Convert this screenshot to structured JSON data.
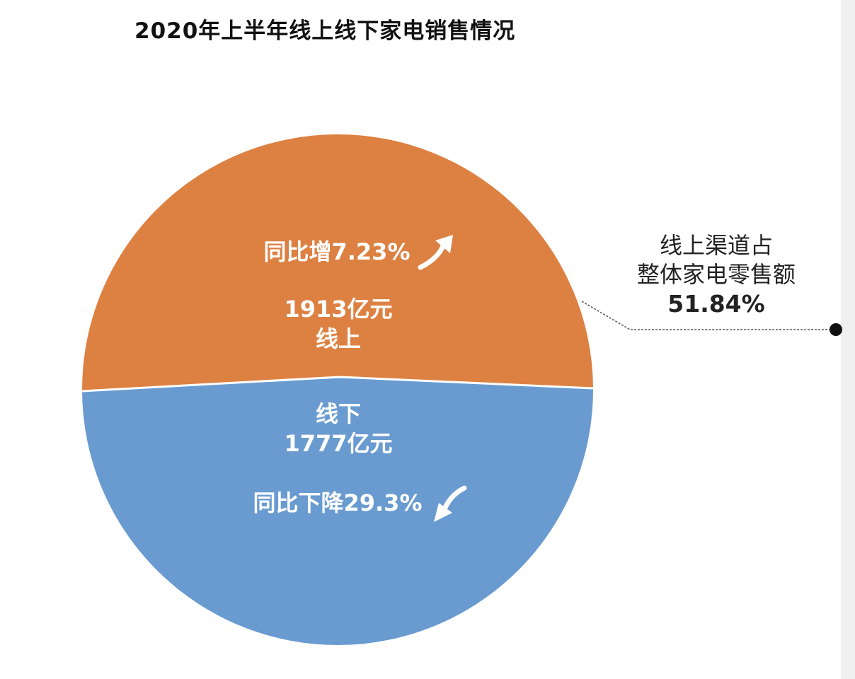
{
  "colors": {
    "online": "#DD8142",
    "offline": "#6A9BD0",
    "text_dark": "#111111",
    "callout_dot": "#111111"
  },
  "chart_data": {
    "type": "pie",
    "title": "2020年上半年线上线下家电销售情况",
    "unit": "亿元",
    "slices": [
      {
        "name": "线上",
        "value": 1913,
        "value_label": "1913亿元",
        "change_label": "同比增7.23%",
        "change_direction": "up",
        "color": "#DD8142"
      },
      {
        "name": "线下",
        "value": 1777,
        "value_label": "1777亿元",
        "change_label": "同比下降29.3%",
        "change_direction": "down",
        "color": "#6A9BD0"
      }
    ],
    "annotation": {
      "lines": [
        "线上渠道占",
        "整体家电零售额"
      ],
      "value": "51.84%"
    }
  }
}
